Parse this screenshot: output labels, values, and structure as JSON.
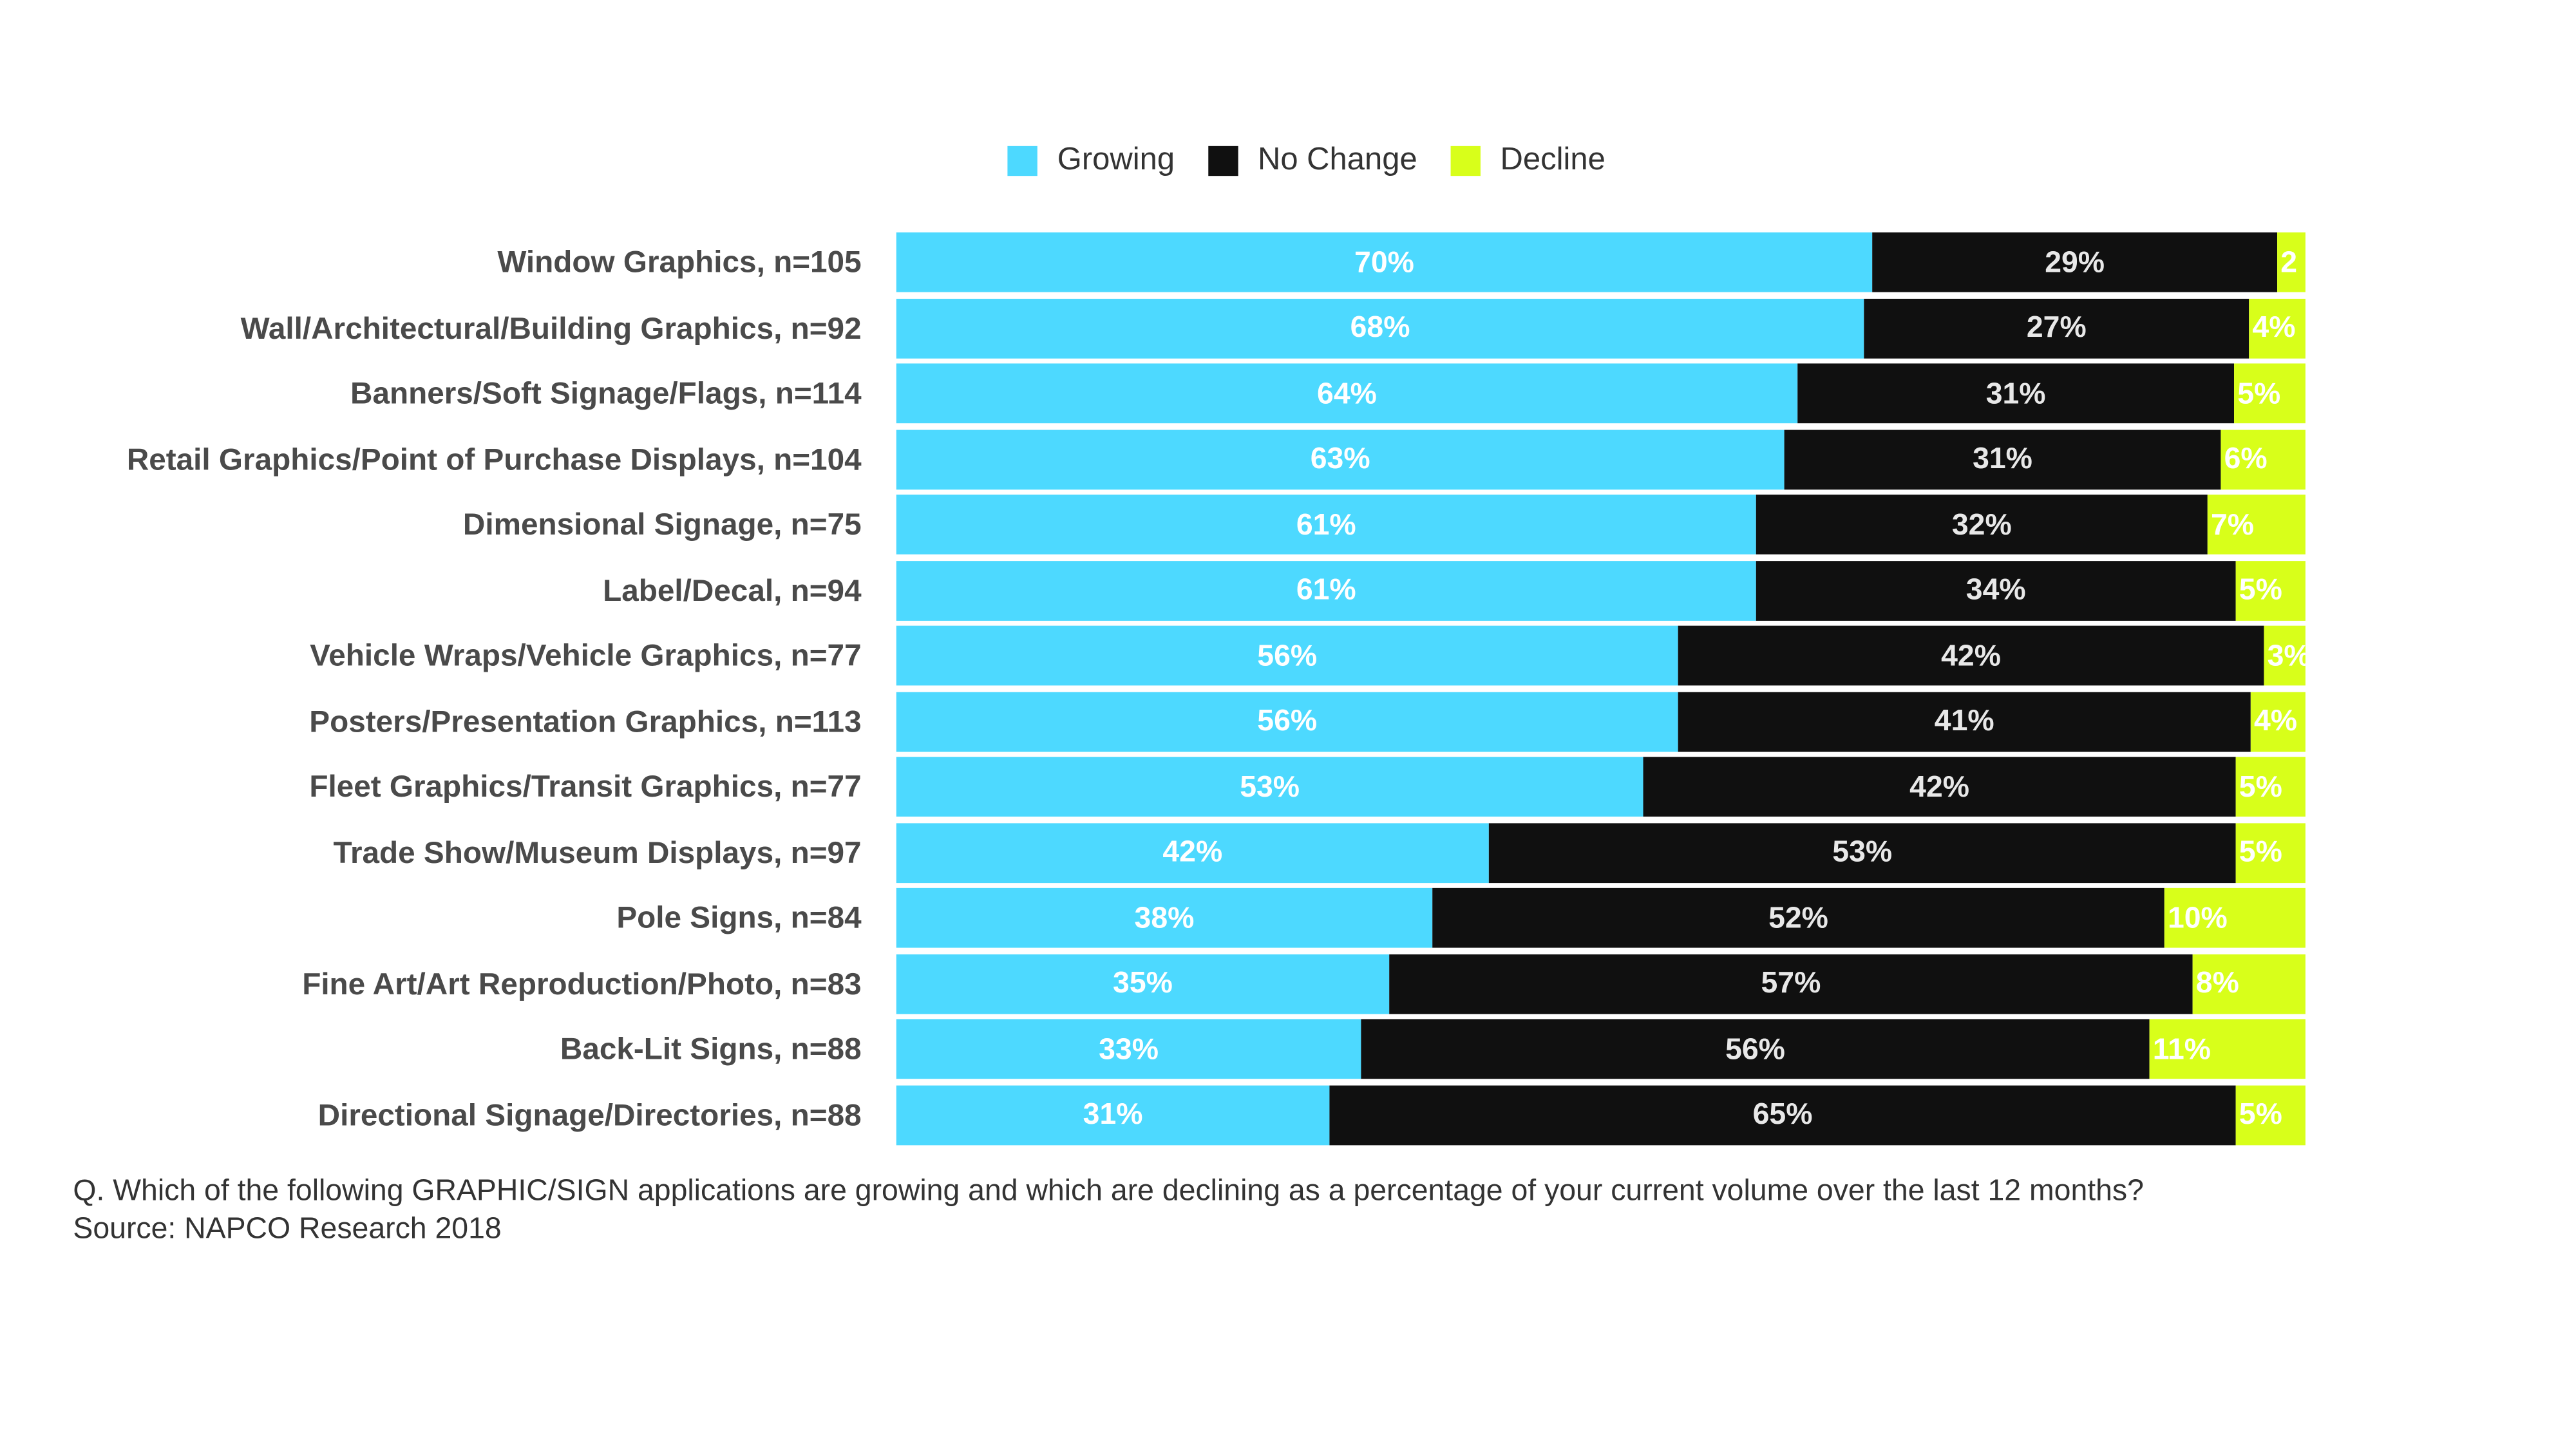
{
  "colors": {
    "growing": "#4dd9ff",
    "no_change": "#101010",
    "decline": "#d8ff1a"
  },
  "legend": {
    "growing": "Growing",
    "no_change": "No Change",
    "decline": "Decline"
  },
  "chart_data": {
    "type": "bar",
    "orientation": "horizontal",
    "stacked": true,
    "normalized": true,
    "categories": [
      "Window Graphics, n=105",
      "Wall/Architectural/Building Graphics, n=92",
      "Banners/Soft Signage/Flags, n=114",
      "Retail Graphics/Point of Purchase Displays, n=104",
      "Dimensional Signage, n=75",
      "Label/Decal, n=94",
      "Vehicle Wraps/Vehicle Graphics, n=77",
      "Posters/Presentation Graphics, n=113",
      "Fleet Graphics/Transit Graphics, n=77",
      "Trade Show/Museum Displays, n=97",
      "Pole Signs, n=84",
      "Fine Art/Art Reproduction/Photo, n=83",
      "Back-Lit Signs, n=88",
      "Directional Signage/Directories, n=88"
    ],
    "series": [
      {
        "name": "Growing",
        "values": [
          70,
          68,
          64,
          63,
          61,
          61,
          56,
          56,
          53,
          42,
          38,
          35,
          33,
          31
        ]
      },
      {
        "name": "No Change",
        "values": [
          29,
          27,
          31,
          31,
          32,
          34,
          42,
          41,
          42,
          53,
          52,
          57,
          56,
          65
        ]
      },
      {
        "name": "Decline",
        "values": [
          2,
          4,
          5,
          6,
          7,
          5,
          3,
          4,
          5,
          5,
          10,
          8,
          11,
          5
        ]
      }
    ],
    "value_labels": [
      [
        "70%",
        "29%",
        "2"
      ],
      [
        "68%",
        "27%",
        "4%"
      ],
      [
        "64%",
        "31%",
        "5%"
      ],
      [
        "63%",
        "31%",
        "6%"
      ],
      [
        "61%",
        "32%",
        "7%"
      ],
      [
        "61%",
        "34%",
        "5%"
      ],
      [
        "56%",
        "42%",
        "3%"
      ],
      [
        "56%",
        "41%",
        "4%"
      ],
      [
        "53%",
        "42%",
        "5%"
      ],
      [
        "42%",
        "53%",
        "5%"
      ],
      [
        "38%",
        "52%",
        "10%"
      ],
      [
        "35%",
        "57%",
        "8%"
      ],
      [
        "33%",
        "56%",
        "11%"
      ],
      [
        "31%",
        "65%",
        "5%"
      ]
    ],
    "legend_position": "top",
    "grid": false
  },
  "footnote": {
    "question": "Q. Which of the following GRAPHIC/SIGN applications are growing and which are declining as a percentage of your current volume over the last 12 months?",
    "source": "Source: NAPCO Research 2018"
  }
}
